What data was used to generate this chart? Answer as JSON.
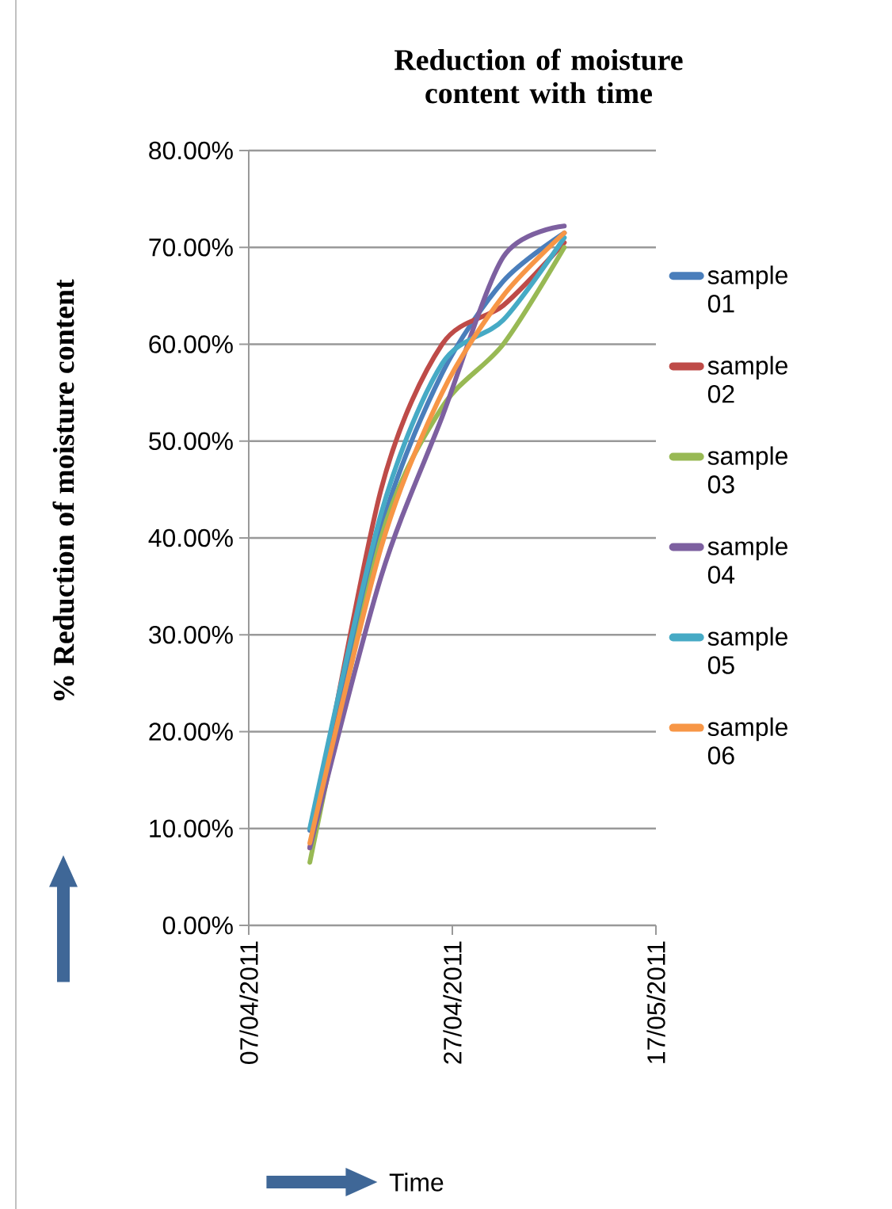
{
  "chart_data": {
    "type": "line",
    "title": "Reduction of moisture content with time",
    "xlabel": "Time",
    "ylabel": "% Reduction of moisture content",
    "x": [
      "2011-04-13",
      "2011-04-20",
      "2011-04-26",
      "2011-05-02",
      "2011-05-08"
    ],
    "xlim": [
      "2011-04-07",
      "2011-05-17"
    ],
    "xticks": [
      {
        "value": "2011-04-07",
        "label": "07/04/2011"
      },
      {
        "value": "2011-04-27",
        "label": "27/04/2011"
      },
      {
        "value": "2011-05-17",
        "label": "17/05/2011"
      }
    ],
    "ylim": [
      0,
      80
    ],
    "yticks": [
      {
        "value": 0,
        "label": "0.00%"
      },
      {
        "value": 10,
        "label": "10.00%"
      },
      {
        "value": 20,
        "label": "20.00%"
      },
      {
        "value": 30,
        "label": "30.00%"
      },
      {
        "value": 40,
        "label": "40.00%"
      },
      {
        "value": 50,
        "label": "50.00%"
      },
      {
        "value": 60,
        "label": "60.00%"
      },
      {
        "value": 70,
        "label": "70.00%"
      },
      {
        "value": 80,
        "label": "80.00%"
      }
    ],
    "grid": "y",
    "legend": "right",
    "marker": "none",
    "line_style": "solid",
    "series": [
      {
        "name": "sample 01",
        "color": "#4a7ebb",
        "values": [
          9.8,
          41,
          57,
          66.5,
          71.5
        ]
      },
      {
        "name": "sample 02",
        "color": "#be4b48",
        "values": [
          8,
          45,
          60,
          64,
          70.5
        ]
      },
      {
        "name": "sample 03",
        "color": "#98b954",
        "values": [
          6.5,
          40,
          53.5,
          60,
          70
        ]
      },
      {
        "name": "sample 04",
        "color": "#7d60a0",
        "values": [
          8,
          36,
          52.5,
          69,
          72.2
        ]
      },
      {
        "name": "sample 05",
        "color": "#46aac5",
        "values": [
          10,
          42.5,
          58,
          62.5,
          71
        ]
      },
      {
        "name": "sample 06",
        "color": "#f79646",
        "values": [
          8.5,
          39,
          55,
          65,
          71.5
        ]
      }
    ]
  }
}
